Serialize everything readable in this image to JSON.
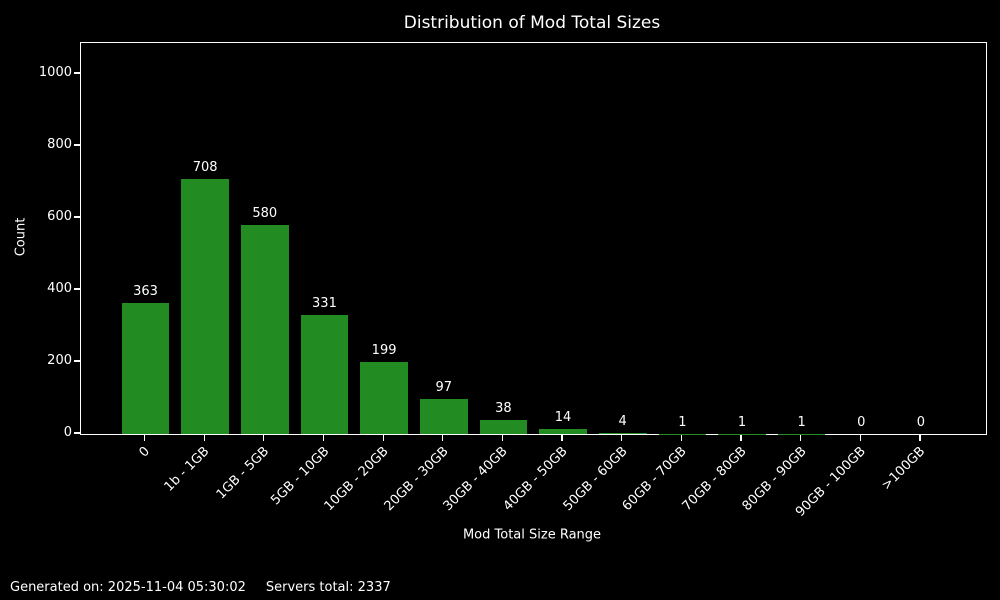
{
  "chart_data": {
    "type": "bar",
    "title": "Distribution of Mod Total Sizes",
    "xlabel": "Mod Total Size Range",
    "ylabel": "Count",
    "categories": [
      "0",
      "1b - 1GB",
      "1GB - 5GB",
      "5GB - 10GB",
      "10GB - 20GB",
      "20GB - 30GB",
      "30GB - 40GB",
      "40GB - 50GB",
      "50GB - 60GB",
      "60GB - 70GB",
      "70GB - 80GB",
      "80GB - 90GB",
      "90GB - 100GB",
      ">100GB"
    ],
    "values": [
      363,
      708,
      580,
      331,
      199,
      97,
      38,
      14,
      4,
      1,
      1,
      1,
      0,
      0
    ],
    "yticks": [
      0,
      200,
      400,
      600,
      800,
      1000
    ],
    "ylim": [
      0,
      1086
    ],
    "bar_labels_shown": true,
    "grid": false,
    "legend": "none",
    "colors": {
      "background": "#000000",
      "bar": "#228B22",
      "text": "#ffffff",
      "spine": "#ffffff"
    }
  },
  "footer": {
    "generated_label": "Generated on: 2025-11-04 05:30:02",
    "servers_label": "Servers total: 2337"
  }
}
